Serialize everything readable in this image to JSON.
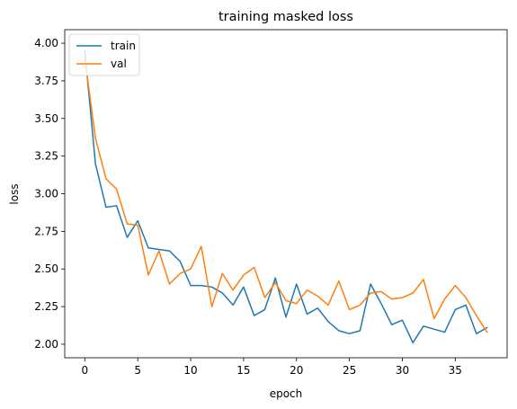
{
  "chart_data": {
    "type": "line",
    "title": "training masked loss",
    "xlabel": "epoch",
    "ylabel": "loss",
    "xlim": [
      -1.9,
      39.9
    ],
    "ylim": [
      1.91,
      4.09
    ],
    "xticks": [
      0,
      5,
      10,
      15,
      20,
      25,
      30,
      35
    ],
    "xtick_labels": [
      "0",
      "5",
      "10",
      "15",
      "20",
      "25",
      "30",
      "35"
    ],
    "yticks": [
      2.0,
      2.25,
      2.5,
      2.75,
      3.0,
      3.25,
      3.5,
      3.75,
      4.0
    ],
    "ytick_labels": [
      "2.00",
      "2.25",
      "2.50",
      "2.75",
      "3.00",
      "3.25",
      "3.50",
      "3.75",
      "4.00"
    ],
    "grid": false,
    "legend_position": "upper left",
    "x": [
      0,
      1,
      2,
      3,
      4,
      5,
      6,
      7,
      8,
      9,
      10,
      11,
      12,
      13,
      14,
      15,
      16,
      17,
      18,
      19,
      20,
      21,
      22,
      23,
      24,
      25,
      26,
      27,
      28,
      29,
      30,
      31,
      32,
      33,
      34,
      35,
      36,
      37,
      38
    ],
    "series": [
      {
        "name": "train",
        "color": "#1f77b4",
        "values": [
          3.95,
          3.2,
          2.91,
          2.92,
          2.71,
          2.82,
          2.64,
          2.63,
          2.62,
          2.55,
          2.39,
          2.39,
          2.38,
          2.34,
          2.26,
          2.38,
          2.19,
          2.23,
          2.44,
          2.18,
          2.4,
          2.2,
          2.24,
          2.15,
          2.09,
          2.07,
          2.09,
          2.4,
          2.27,
          2.13,
          2.16,
          2.01,
          2.12,
          2.1,
          2.08,
          2.23,
          2.26,
          2.07,
          2.11
        ]
      },
      {
        "name": "val",
        "color": "#ff7f0e",
        "values": [
          3.9,
          3.37,
          3.1,
          3.03,
          2.8,
          2.79,
          2.46,
          2.62,
          2.4,
          2.47,
          2.5,
          2.65,
          2.25,
          2.47,
          2.36,
          2.46,
          2.51,
          2.31,
          2.41,
          2.29,
          2.27,
          2.36,
          2.32,
          2.26,
          2.42,
          2.23,
          2.26,
          2.34,
          2.35,
          2.3,
          2.31,
          2.34,
          2.43,
          2.17,
          2.3,
          2.39,
          2.31,
          2.19,
          2.08
        ]
      }
    ]
  }
}
